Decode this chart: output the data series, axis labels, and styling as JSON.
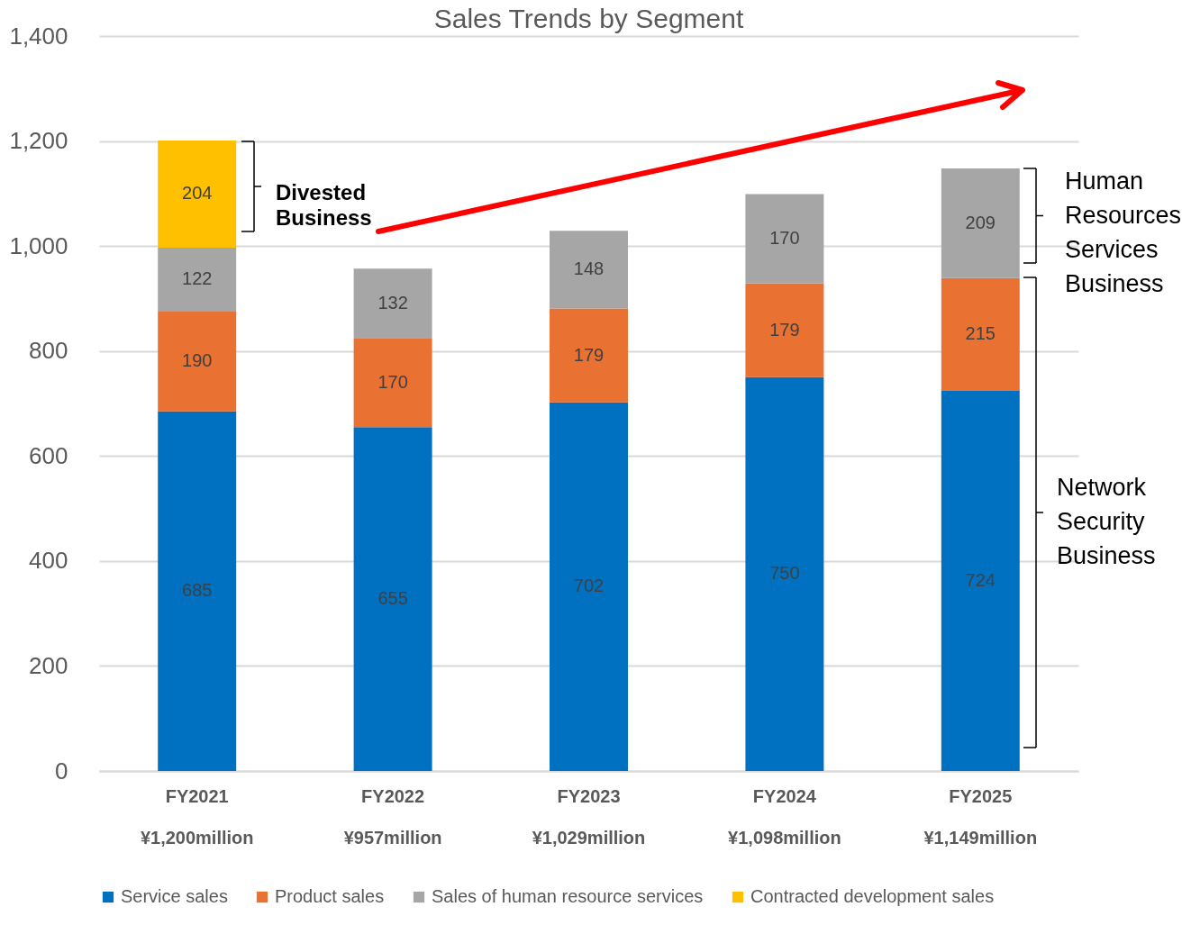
{
  "chart_data": {
    "type": "bar",
    "title": "Sales Trends by Segment",
    "stacked": true,
    "categories": [
      "FY2021",
      "FY2022",
      "FY2023",
      "FY2024",
      "FY2025"
    ],
    "totals": [
      "¥1,200million",
      "¥957million",
      "¥1,029million",
      "¥1,098million",
      "¥1,149million"
    ],
    "series": [
      {
        "name": "Service sales",
        "color": "#0070c0",
        "values": [
          685,
          655,
          702,
          750,
          724
        ]
      },
      {
        "name": "Product sales",
        "color": "#e97132",
        "values": [
          190,
          170,
          179,
          179,
          215
        ]
      },
      {
        "name": "Sales of human resource services",
        "color": "#a6a6a6",
        "values": [
          122,
          132,
          148,
          170,
          209
        ]
      },
      {
        "name": "Contracted development sales",
        "color": "#ffc000",
        "values": [
          204,
          null,
          null,
          null,
          null
        ]
      }
    ],
    "ylim": [
      0,
      1400
    ],
    "yticks": [
      0,
      200,
      400,
      600,
      800,
      {
        "value": 1000,
        "label": "1,000"
      },
      {
        "value": 1200,
        "label": "1,200"
      },
      {
        "value": 1400,
        "label": "1,400"
      }
    ],
    "grid": "y",
    "legend": "bottom",
    "data_labels": true,
    "annotations": [
      "Divested Business",
      "Human Resources Services Business",
      "Network Security Business"
    ]
  }
}
